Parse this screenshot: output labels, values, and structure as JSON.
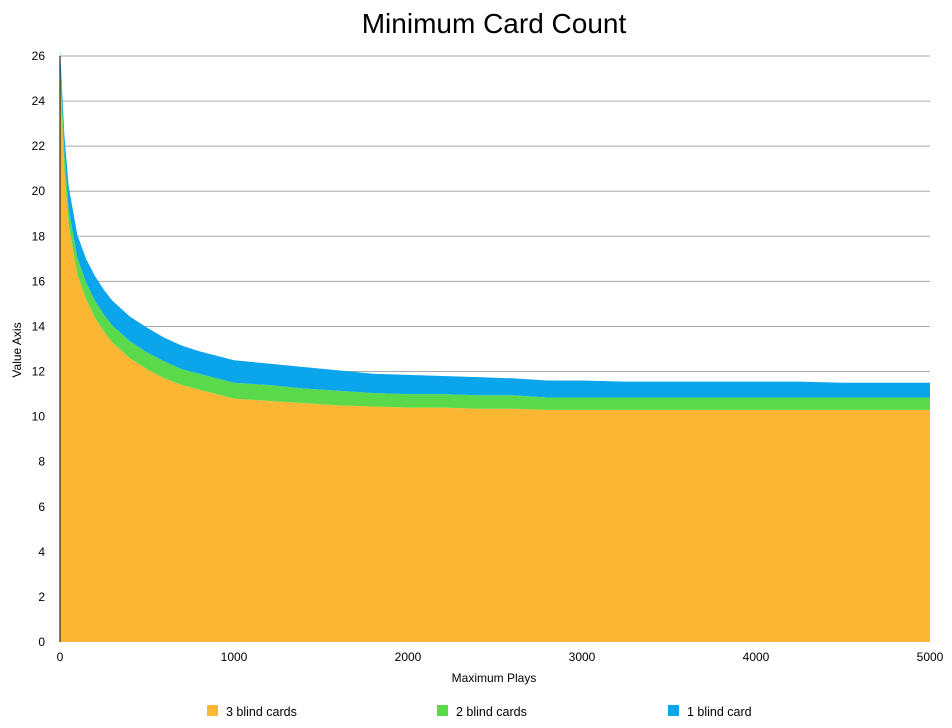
{
  "chart_data": {
    "type": "area",
    "stacked": true,
    "title": "Minimum Card Count",
    "xlabel": "Maximum Plays",
    "ylabel": "Value Axis",
    "xlim": [
      0,
      5000
    ],
    "ylim": [
      0,
      26
    ],
    "x_ticks": [
      0,
      1000,
      2000,
      3000,
      4000,
      5000
    ],
    "y_ticks": [
      0,
      2,
      4,
      6,
      8,
      10,
      12,
      14,
      16,
      18,
      20,
      22,
      24,
      26
    ],
    "grid": true,
    "legend_position": "bottom",
    "x": [
      0,
      25,
      50,
      100,
      150,
      200,
      250,
      300,
      400,
      500,
      600,
      700,
      800,
      900,
      1000,
      1200,
      1400,
      1600,
      1800,
      2000,
      2200,
      2400,
      2600,
      2800,
      3000,
      3250,
      3500,
      3750,
      4000,
      4250,
      4500,
      4750,
      5000
    ],
    "series": [
      {
        "name": "3 blind cards",
        "color": "#fbb733",
        "values": [
          25.0,
          21.0,
          18.5,
          16.3,
          15.2,
          14.4,
          13.8,
          13.3,
          12.6,
          12.1,
          11.7,
          11.4,
          11.2,
          11.0,
          10.8,
          10.7,
          10.6,
          10.5,
          10.45,
          10.4,
          10.4,
          10.35,
          10.35,
          10.3,
          10.3,
          10.3,
          10.3,
          10.3,
          10.3,
          10.3,
          10.3,
          10.3,
          10.3
        ]
      },
      {
        "name": "2 blind cards",
        "color": "#5ada4b",
        "values": [
          0.8,
          0.7,
          0.7,
          0.75,
          0.75,
          0.75,
          0.75,
          0.75,
          0.75,
          0.75,
          0.75,
          0.7,
          0.7,
          0.7,
          0.7,
          0.7,
          0.65,
          0.65,
          0.6,
          0.6,
          0.6,
          0.6,
          0.6,
          0.55,
          0.55,
          0.55,
          0.55,
          0.55,
          0.55,
          0.55,
          0.55,
          0.55,
          0.55
        ]
      },
      {
        "name": "1 blind card",
        "color": "#0ba5ec",
        "values": [
          0.5,
          0.8,
          1.0,
          1.0,
          1.05,
          1.1,
          1.1,
          1.1,
          1.1,
          1.1,
          1.05,
          1.05,
          1.0,
          1.0,
          1.0,
          0.95,
          0.95,
          0.9,
          0.85,
          0.85,
          0.8,
          0.8,
          0.75,
          0.75,
          0.75,
          0.7,
          0.7,
          0.7,
          0.7,
          0.7,
          0.65,
          0.65,
          0.65
        ]
      }
    ]
  }
}
